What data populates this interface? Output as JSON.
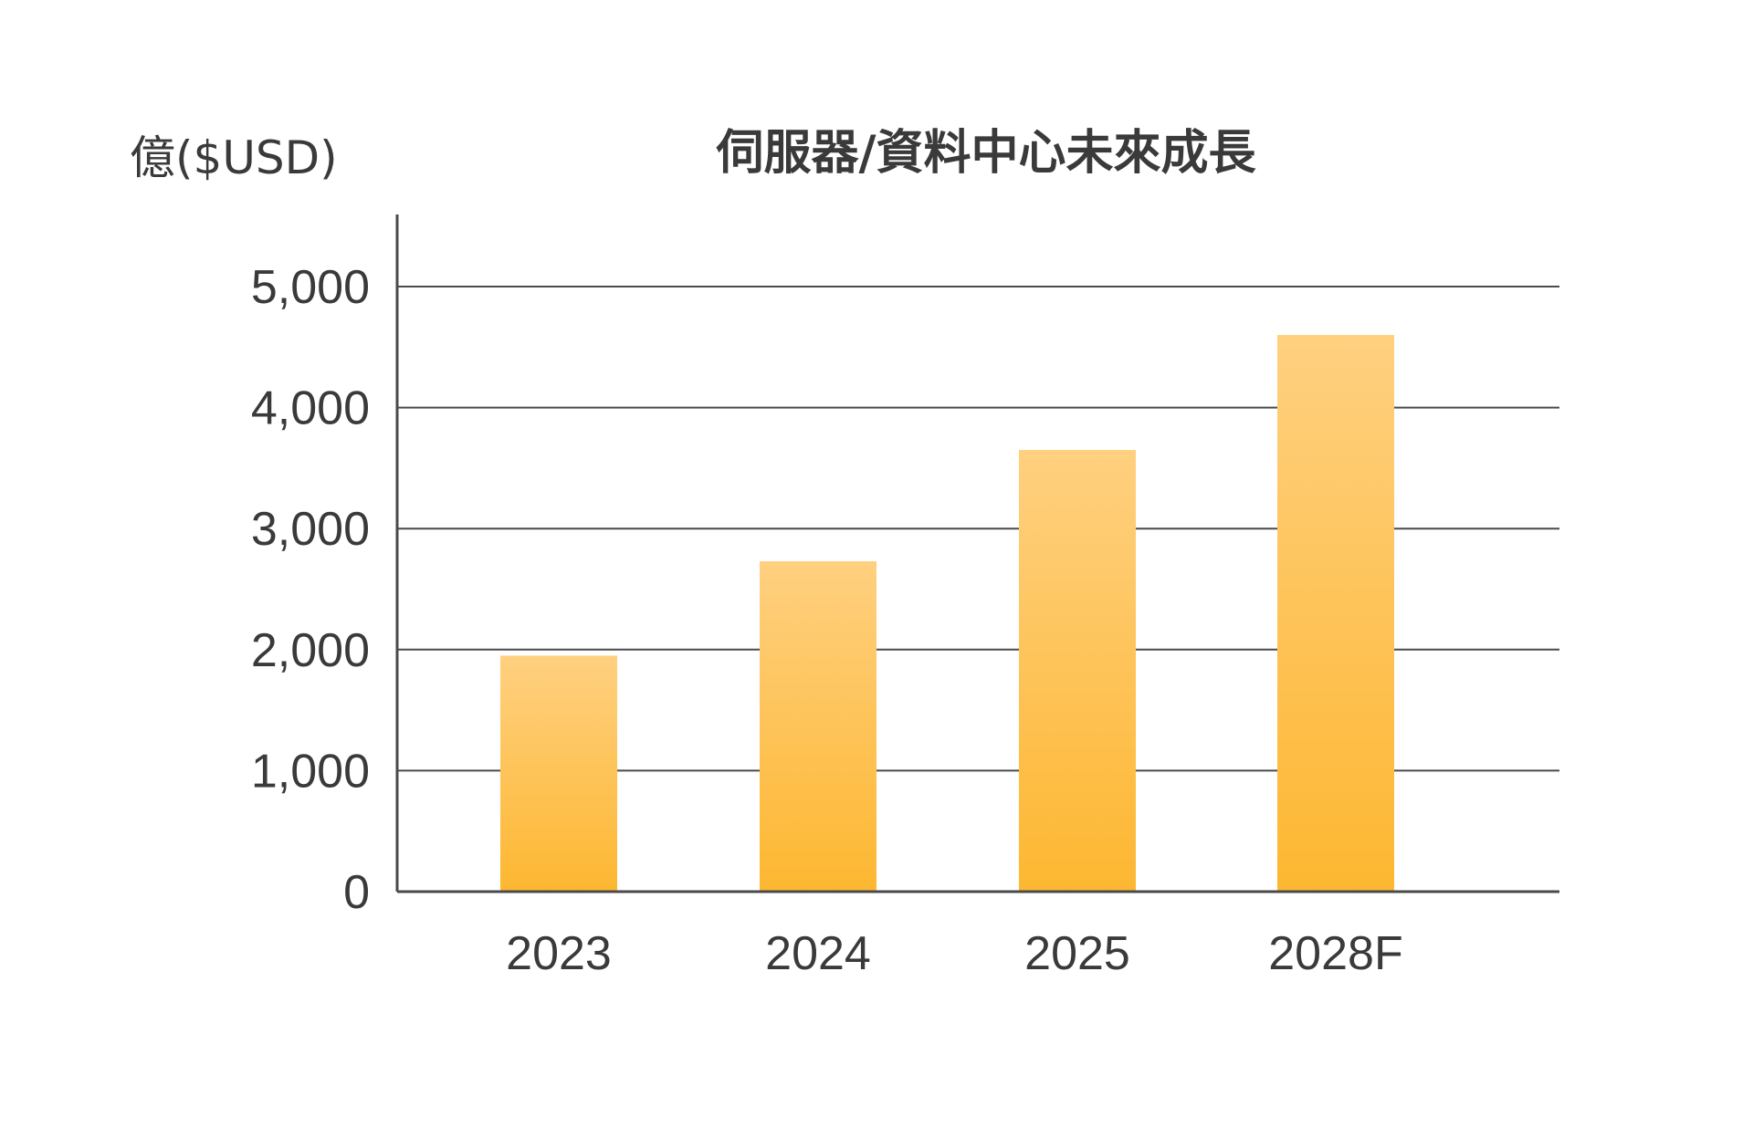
{
  "chart_data": {
    "type": "bar",
    "title": "伺服器/資料中心未來成長",
    "ylabel": "億($USD)",
    "xlabel": "",
    "categories": [
      "2023",
      "2024",
      "2025",
      "2028F"
    ],
    "values": [
      1950,
      2730,
      3650,
      4600
    ],
    "ylim": [
      0,
      5000
    ],
    "yticks": [
      "0",
      "1,000",
      "2,000",
      "3,000",
      "4,000",
      "5,000"
    ],
    "ytick_values": [
      0,
      1000,
      2000,
      3000,
      4000,
      5000
    ],
    "grid": true,
    "legend": "none",
    "bar_color_top": "#ffd080",
    "bar_color_bottom": "#fdb731",
    "axis_color": "#4a4a4a"
  }
}
